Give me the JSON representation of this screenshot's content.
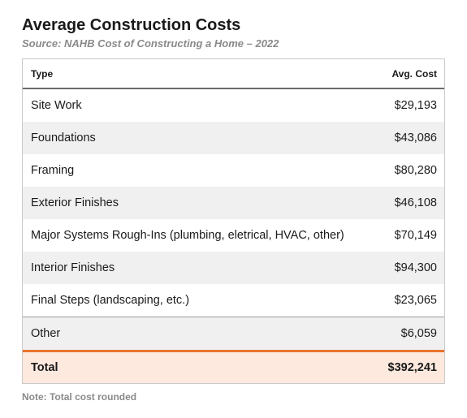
{
  "title": "Average Construction Costs",
  "subtitle": "Source: NAHB Cost of Constructing a Home – 2022",
  "table": {
    "headers": {
      "type": "Type",
      "cost": "Avg. Cost"
    },
    "rows": [
      {
        "type": "Site Work",
        "cost": "$29,193"
      },
      {
        "type": "Foundations",
        "cost": "$43,086"
      },
      {
        "type": "Framing",
        "cost": "$80,280"
      },
      {
        "type": "Exterior Finishes",
        "cost": "$46,108"
      },
      {
        "type": "Major Systems Rough-Ins (plumbing, eletrical, HVAC, other)",
        "cost": "$70,149"
      },
      {
        "type": "Interior Finishes",
        "cost": "$94,300"
      },
      {
        "type": "Final Steps (landscaping, etc.)",
        "cost": "$23,065"
      },
      {
        "type": "Other",
        "cost": "$6,059"
      }
    ],
    "total": {
      "label": "Total",
      "cost": "$392,241"
    }
  },
  "note": "Note: Total cost rounded",
  "colors": {
    "accent": "#e8742e",
    "total_bg": "#fde9de",
    "alt_row_bg": "#f0f0f0",
    "muted_text": "#8a8a8a"
  }
}
